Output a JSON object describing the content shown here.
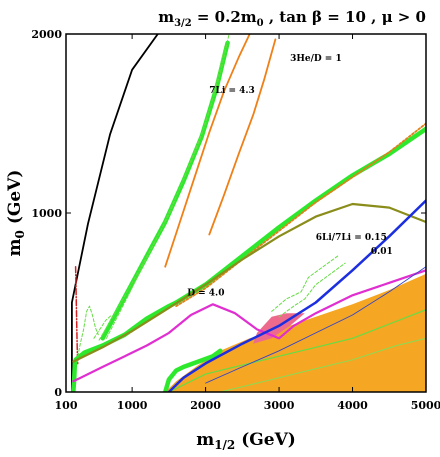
{
  "chart_data": {
    "type": "line",
    "title": "m3/2 = 0.2m0 , tan β = 10 ,  μ > 0",
    "title_parts": {
      "lhs_main": "m",
      "lhs_sub": "3/2",
      "rhs_main": " = 0.2m",
      "rhs_sub": "0",
      "rest": " , tan β = 10 ,  μ > 0"
    },
    "xlabel": "m1/2 (GeV)",
    "xlabel_parts": {
      "main": "m",
      "sub": "1/2",
      "unit": " (GeV)"
    },
    "ylabel": "m0 (GeV)",
    "ylabel_parts": {
      "main": "m",
      "sub": "0",
      "unit": " (GeV)"
    },
    "xlim": [
      100,
      5000
    ],
    "ylim": [
      0,
      2000
    ],
    "x_ticks": [
      {
        "value": 100,
        "label": "100"
      },
      {
        "value": 1000,
        "label": "1000"
      },
      {
        "value": 2000,
        "label": "2000"
      },
      {
        "value": 3000,
        "label": "3000"
      },
      {
        "value": 4000,
        "label": "4000"
      },
      {
        "value": 5000,
        "label": "5000"
      }
    ],
    "y_ticks": [
      {
        "value": 0,
        "label": "0"
      },
      {
        "value": 1000,
        "label": "1000"
      },
      {
        "value": 2000,
        "label": "2000"
      }
    ],
    "grid": false,
    "regions": [
      {
        "name": "orange-excluded-region",
        "color": "#f5a623",
        "points": [
          [
            1450,
            0
          ],
          [
            5000,
            0
          ],
          [
            5000,
            660
          ],
          [
            4500,
            570
          ],
          [
            4000,
            490
          ],
          [
            3500,
            420
          ],
          [
            3000,
            350
          ],
          [
            2600,
            300
          ],
          [
            2200,
            230
          ],
          [
            1900,
            150
          ],
          [
            1600,
            60
          ],
          [
            1450,
            0
          ]
        ]
      },
      {
        "name": "pink-region",
        "color": "#ee6a8d",
        "points": [
          [
            2650,
            270
          ],
          [
            2900,
            300
          ],
          [
            3150,
            370
          ],
          [
            3350,
            440
          ],
          [
            3100,
            440
          ],
          [
            2900,
            420
          ],
          [
            2700,
            330
          ],
          [
            2650,
            270
          ]
        ]
      }
    ],
    "series": [
      {
        "name": "black-boundary",
        "color": "#000000",
        "width": 1.8,
        "dash": "",
        "points": [
          [
            180,
            0
          ],
          [
            180,
            500
          ],
          [
            400,
            940
          ],
          [
            700,
            1440
          ],
          [
            1000,
            1800
          ],
          [
            1350,
            2000
          ]
        ]
      },
      {
        "name": "red-dash-dot",
        "color": "#d42020",
        "width": 1.5,
        "dash": "6 2 1 2",
        "points": [
          [
            230,
            700
          ],
          [
            240,
            500
          ],
          [
            250,
            300
          ],
          [
            255,
            200
          ],
          [
            260,
            150
          ]
        ]
      },
      {
        "name": "orange-line-left",
        "color": "#f07f16",
        "width": 1.8,
        "dash": "",
        "points": [
          [
            1450,
            700
          ],
          [
            1650,
            950
          ],
          [
            1850,
            1200
          ],
          [
            2050,
            1450
          ],
          [
            2250,
            1680
          ],
          [
            2450,
            1870
          ],
          [
            2600,
            2000
          ]
        ]
      },
      {
        "name": "orange-line-right",
        "color": "#f07f16",
        "width": 1.8,
        "dash": "",
        "points": [
          [
            2050,
            880
          ],
          [
            2250,
            1100
          ],
          [
            2450,
            1330
          ],
          [
            2650,
            1550
          ],
          [
            2800,
            1750
          ],
          [
            2950,
            1970
          ]
        ]
      },
      {
        "name": "green-main-upper",
        "color": "#2ee82e",
        "width": 4.5,
        "dash": "",
        "points": [
          [
            600,
            300
          ],
          [
            900,
            530
          ],
          [
            1200,
            760
          ],
          [
            1450,
            950
          ],
          [
            1700,
            1180
          ],
          [
            1950,
            1430
          ],
          [
            2150,
            1700
          ],
          [
            2300,
            1950
          ]
        ]
      },
      {
        "name": "green-thin-upper-a",
        "color": "#66dd44",
        "width": 1,
        "dash": "3 2",
        "points": [
          [
            650,
            300
          ],
          [
            950,
            540
          ],
          [
            1250,
            790
          ],
          [
            1500,
            990
          ],
          [
            1750,
            1240
          ],
          [
            2000,
            1500
          ],
          [
            2200,
            1780
          ],
          [
            2320,
            2000
          ]
        ]
      },
      {
        "name": "green-thin-upper-b",
        "color": "#66dd44",
        "width": 1,
        "dash": "3 2",
        "points": [
          [
            550,
            290
          ],
          [
            850,
            500
          ],
          [
            1150,
            720
          ],
          [
            1400,
            910
          ],
          [
            1650,
            1140
          ],
          [
            1900,
            1380
          ],
          [
            2100,
            1640
          ],
          [
            2260,
            1930
          ]
        ]
      },
      {
        "name": "green-main-diagonal",
        "color": "#2ee82e",
        "width": 4.5,
        "dash": "",
        "points": [
          [
            1600,
            500
          ],
          [
            2000,
            600
          ],
          [
            2500,
            760
          ],
          [
            3000,
            920
          ],
          [
            3500,
            1070
          ],
          [
            4000,
            1210
          ],
          [
            4500,
            1330
          ],
          [
            5000,
            1470
          ]
        ]
      },
      {
        "name": "orange-dotted-diagonal",
        "color": "#e0801a",
        "width": 1.8,
        "dash": "2 2",
        "points": [
          [
            1600,
            480
          ],
          [
            2000,
            580
          ],
          [
            2500,
            740
          ],
          [
            3000,
            900
          ],
          [
            3500,
            1060
          ],
          [
            4000,
            1200
          ],
          [
            4500,
            1340
          ],
          [
            5000,
            1500
          ]
        ]
      },
      {
        "name": "green-main-left",
        "color": "#2ee82e",
        "width": 4.5,
        "dash": "",
        "points": [
          [
            200,
            0
          ],
          [
            210,
            60
          ],
          [
            220,
            150
          ],
          [
            230,
            180
          ],
          [
            350,
            220
          ],
          [
            600,
            260
          ],
          [
            900,
            320
          ],
          [
            1200,
            410
          ],
          [
            1500,
            480
          ],
          [
            1600,
            500
          ]
        ]
      },
      {
        "name": "green-main-lower",
        "color": "#2ee82e",
        "width": 4.5,
        "dash": "",
        "points": [
          [
            1450,
            0
          ],
          [
            1500,
            70
          ],
          [
            1600,
            120
          ],
          [
            1700,
            140
          ],
          [
            1900,
            170
          ],
          [
            2100,
            200
          ],
          [
            2200,
            230
          ]
        ]
      },
      {
        "name": "green-thin-mid-a",
        "color": "#66dd44",
        "width": 1,
        "dash": "3 2",
        "points": [
          [
            2900,
            450
          ],
          [
            3100,
            520
          ],
          [
            3300,
            560
          ],
          [
            3400,
            640
          ],
          [
            3600,
            700
          ],
          [
            3800,
            760
          ]
        ]
      },
      {
        "name": "green-thin-mid-b",
        "color": "#66dd44",
        "width": 1,
        "dash": "3 2",
        "points": [
          [
            3000,
            420
          ],
          [
            3200,
            480
          ],
          [
            3350,
            520
          ],
          [
            3500,
            600
          ],
          [
            3700,
            660
          ],
          [
            3900,
            720
          ]
        ]
      },
      {
        "name": "green-thin-lower",
        "color": "#66dd44",
        "width": 1.2,
        "dash": "",
        "points": [
          [
            1500,
            0
          ],
          [
            2000,
            100
          ],
          [
            2500,
            150
          ],
          [
            3000,
            200
          ],
          [
            3500,
            250
          ],
          [
            4000,
            300
          ],
          [
            4500,
            380
          ],
          [
            5000,
            460
          ]
        ]
      },
      {
        "name": "green-thin-lower-2",
        "color": "#88dd55",
        "width": 1,
        "dash": "",
        "points": [
          [
            2200,
            0
          ],
          [
            2800,
            60
          ],
          [
            3400,
            120
          ],
          [
            4000,
            180
          ],
          [
            4600,
            260
          ],
          [
            5000,
            300
          ]
        ]
      },
      {
        "name": "olive-line",
        "color": "#8a8d1a",
        "width": 2.2,
        "dash": "",
        "points": [
          [
            200,
            170
          ],
          [
            600,
            250
          ],
          [
            1000,
            340
          ],
          [
            1500,
            470
          ],
          [
            2000,
            600
          ],
          [
            2500,
            740
          ],
          [
            3000,
            870
          ],
          [
            3500,
            980
          ],
          [
            4000,
            1050
          ],
          [
            4500,
            1030
          ],
          [
            5000,
            950
          ]
        ]
      },
      {
        "name": "magenta-line",
        "color": "#e02fd0",
        "width": 2.2,
        "dash": "",
        "points": [
          [
            200,
            60
          ],
          [
            300,
            80
          ],
          [
            600,
            140
          ],
          [
            900,
            200
          ],
          [
            1200,
            260
          ],
          [
            1500,
            330
          ],
          [
            1800,
            430
          ],
          [
            2100,
            490
          ],
          [
            2400,
            440
          ],
          [
            2700,
            350
          ],
          [
            3000,
            300
          ],
          [
            3200,
            370
          ],
          [
            3500,
            440
          ],
          [
            4000,
            540
          ],
          [
            4500,
            610
          ],
          [
            5000,
            680
          ]
        ]
      },
      {
        "name": "blue-thick",
        "color": "#1c2fe0",
        "width": 2.5,
        "dash": "",
        "points": [
          [
            1500,
            0
          ],
          [
            1700,
            80
          ],
          [
            2000,
            160
          ],
          [
            2500,
            270
          ],
          [
            3000,
            370
          ],
          [
            3500,
            500
          ],
          [
            4000,
            680
          ],
          [
            4500,
            870
          ],
          [
            5000,
            1070
          ]
        ]
      },
      {
        "name": "blue-thin",
        "color": "#3344cc",
        "width": 0.9,
        "dash": "",
        "points": [
          [
            2000,
            50
          ],
          [
            2500,
            140
          ],
          [
            3000,
            230
          ],
          [
            3500,
            330
          ],
          [
            4000,
            430
          ],
          [
            4500,
            560
          ],
          [
            5000,
            700
          ]
        ]
      },
      {
        "name": "green-small-left",
        "color": "#66dd44",
        "width": 1,
        "dash": "3 2",
        "points": [
          [
            260,
            200
          ],
          [
            300,
            280
          ],
          [
            340,
            350
          ],
          [
            380,
            450
          ],
          [
            420,
            480
          ],
          [
            460,
            430
          ],
          [
            500,
            360
          ],
          [
            540,
            320
          ]
        ]
      },
      {
        "name": "green-thin-upper-left",
        "color": "#66dd44",
        "width": 1,
        "dash": "3 2",
        "points": [
          [
            480,
            300
          ],
          [
            560,
            350
          ],
          [
            640,
            400
          ],
          [
            720,
            430
          ]
        ]
      }
    ],
    "annotations": [
      {
        "name": "he3-label",
        "text": "3He/D = 1",
        "x": 3150,
        "y": 1850
      },
      {
        "name": "li7-label",
        "text": "7Li = 4.3",
        "x": 2050,
        "y": 1670
      },
      {
        "name": "li67-label",
        "text": "6Li/7Li = 0.15",
        "x": 3500,
        "y": 850
      },
      {
        "name": "point01-label",
        "text": "0.01",
        "x": 4250,
        "y": 770
      },
      {
        "name": "d4-label",
        "text": "D = 4.0",
        "x": 1750,
        "y": 540
      }
    ]
  }
}
